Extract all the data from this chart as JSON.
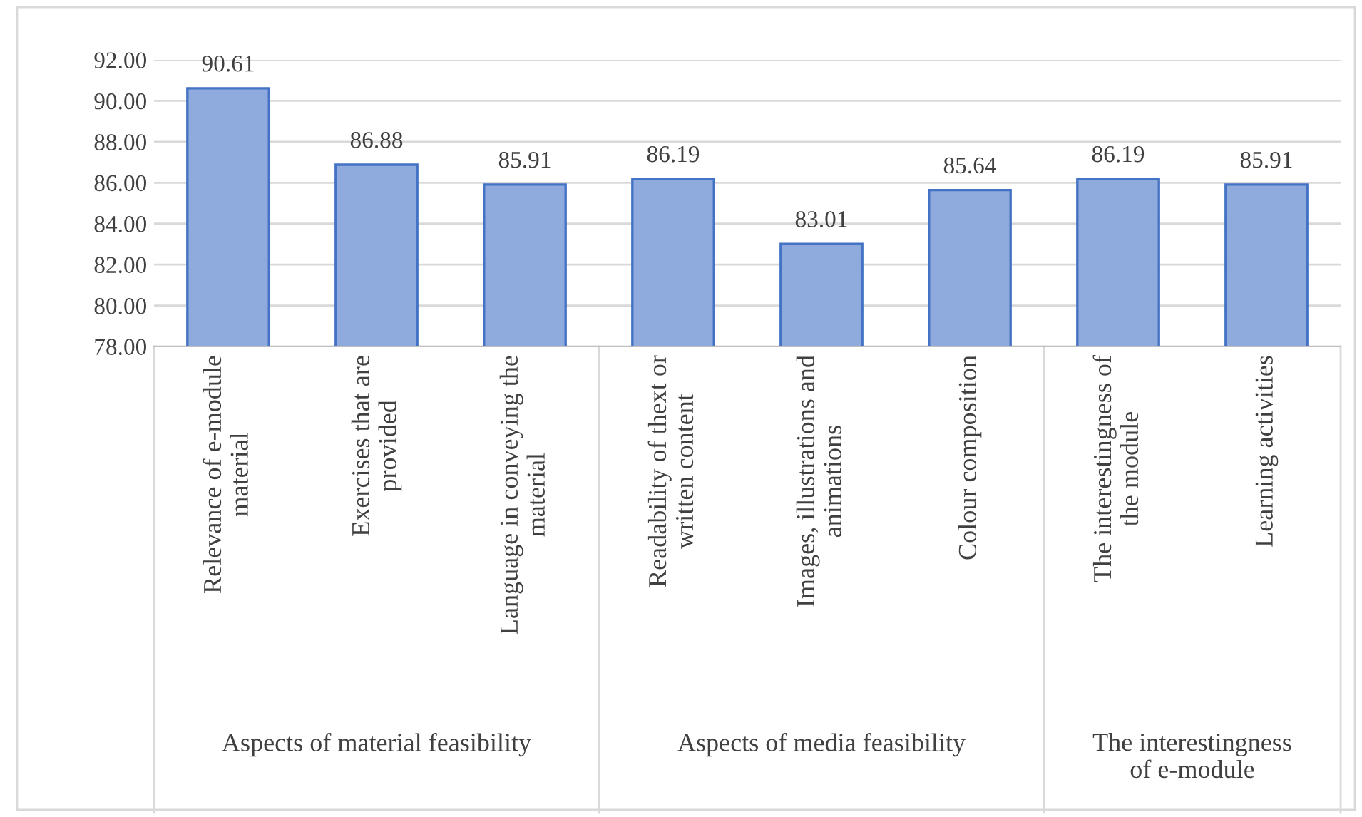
{
  "chart_data": {
    "type": "bar",
    "categories": [
      "Relevance of e-module material",
      "Exercises that are provided",
      "Language in conveying the material",
      "Readability of thext or written content",
      "Images, illustrations and animations",
      "Colour composition",
      "The interestingness of the module",
      "Learning activities"
    ],
    "values": [
      90.61,
      86.88,
      85.91,
      86.19,
      83.01,
      85.64,
      86.19,
      85.91
    ],
    "color": "#8faadc",
    "data_labels": true,
    "annotations": [
      "Aspects of material feasibility",
      "Aspects of media feasibility",
      "The interestingness of e-module"
    ],
    "ylim": [
      78,
      92
    ],
    "yticks": [
      {
        "value": 78,
        "label": "78.00"
      },
      {
        "value": 80,
        "label": "80.00"
      },
      {
        "value": 82,
        "label": "82.00"
      },
      {
        "value": 84,
        "label": "84.00"
      },
      {
        "value": 86,
        "label": "86.00"
      },
      {
        "value": 88,
        "label": "88.00"
      },
      {
        "value": 90,
        "label": "90.00"
      },
      {
        "value": 92,
        "label": "92.00"
      }
    ],
    "grid": "y"
  }
}
